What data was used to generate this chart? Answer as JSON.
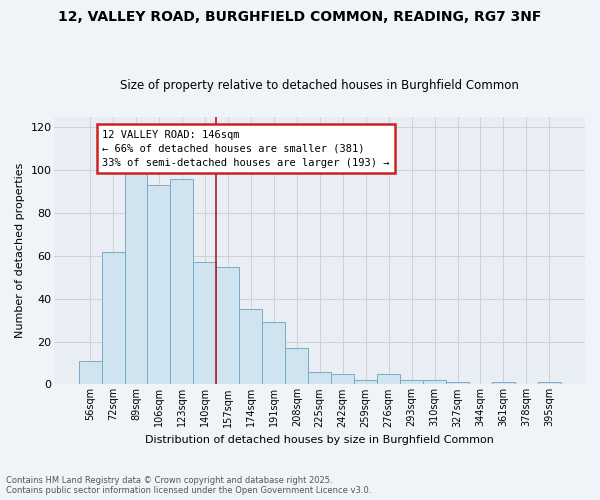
{
  "title": "12, VALLEY ROAD, BURGHFIELD COMMON, READING, RG7 3NF",
  "subtitle": "Size of property relative to detached houses in Burghfield Common",
  "xlabel": "Distribution of detached houses by size in Burghfield Common",
  "ylabel": "Number of detached properties",
  "footnote1": "Contains HM Land Registry data © Crown copyright and database right 2025.",
  "footnote2": "Contains public sector information licensed under the Open Government Licence v3.0.",
  "categories": [
    "56sqm",
    "72sqm",
    "89sqm",
    "106sqm",
    "123sqm",
    "140sqm",
    "157sqm",
    "174sqm",
    "191sqm",
    "208sqm",
    "225sqm",
    "242sqm",
    "259sqm",
    "276sqm",
    "293sqm",
    "310sqm",
    "327sqm",
    "344sqm",
    "361sqm",
    "378sqm",
    "395sqm"
  ],
  "values": [
    11,
    62,
    101,
    93,
    96,
    57,
    55,
    35,
    29,
    17,
    6,
    5,
    2,
    5,
    2,
    2,
    1,
    0,
    1,
    0,
    1
  ],
  "bar_color": "#d0e4f0",
  "bar_edge_color": "#7aaac8",
  "highlight_line_color": "#aa2222",
  "annotation_line1": "12 VALLEY ROAD: 146sqm",
  "annotation_line2": "← 66% of detached houses are smaller (381)",
  "annotation_line3": "33% of semi-detached houses are larger (193) →",
  "annotation_box_color": "#cc2222",
  "ylim": [
    0,
    125
  ],
  "yticks": [
    0,
    20,
    40,
    60,
    80,
    100,
    120
  ],
  "grid_color": "#cccccc",
  "background_color": "#f0f4f8",
  "plot_bg_color": "#e8eef4",
  "fig_width": 6.0,
  "fig_height": 5.0,
  "dpi": 100
}
